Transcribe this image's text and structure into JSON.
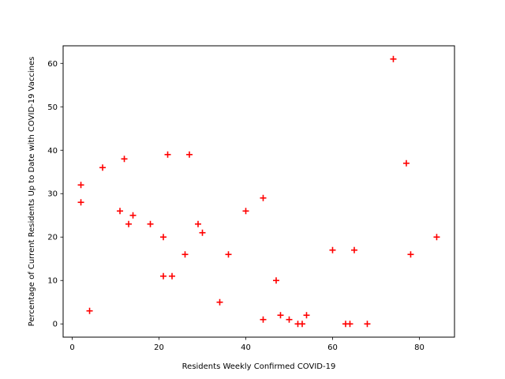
{
  "chart_data": {
    "type": "scatter",
    "xlabel": "Residents Weekly Confirmed COVID-19",
    "ylabel": "Percentage of Current Residents Up to Date with COVID-19 Vaccines",
    "xlim": [
      -2.1,
      88.1
    ],
    "ylim": [
      -3.05,
      64.05
    ],
    "xticks": [
      0,
      20,
      40,
      60,
      80
    ],
    "yticks": [
      0,
      10,
      20,
      30,
      40,
      50,
      60
    ],
    "marker": "plus",
    "marker_color": "#ff0000",
    "grid": false,
    "x": [
      2,
      2,
      4,
      7,
      11,
      12,
      13,
      14,
      18,
      21,
      21,
      22,
      23,
      26,
      27,
      29,
      30,
      34,
      36,
      40,
      44,
      44,
      47,
      48,
      50,
      52,
      53,
      54,
      60,
      63,
      64,
      65,
      68,
      74,
      77,
      78,
      84
    ],
    "y": [
      32,
      28,
      3,
      36,
      26,
      38,
      23,
      25,
      23,
      20,
      11,
      39,
      11,
      16,
      39,
      23,
      21,
      5,
      16,
      26,
      29,
      1,
      10,
      2,
      1,
      0,
      0,
      2,
      17,
      0,
      0,
      17,
      0,
      61,
      37,
      16,
      20
    ]
  }
}
